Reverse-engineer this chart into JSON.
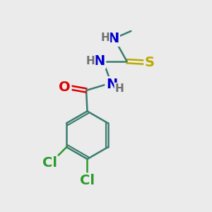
{
  "bg_color": "#ebebeb",
  "bond_color": "#3a7d6e",
  "bond_width": 1.8,
  "atom_colors": {
    "C": "#3a7d6e",
    "N": "#0000cd",
    "O": "#dd0000",
    "S": "#bbaa00",
    "Cl": "#2a9a2a",
    "H": "#707070"
  },
  "font_size_main": 14,
  "font_size_small": 11,
  "font_size_methyl": 12
}
